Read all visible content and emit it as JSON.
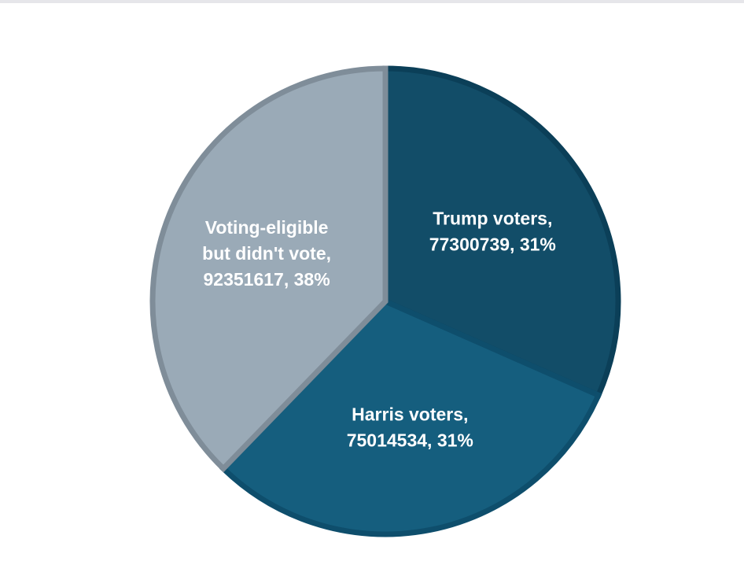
{
  "chart_data": {
    "type": "pie",
    "title": "",
    "start_angle_deg": 0,
    "direction": "clockwise",
    "slices": [
      {
        "category": "Trump voters",
        "value": 77300739,
        "percent_label": "31%",
        "label_lines": [
          "Trump voters,",
          "77300739, 31%"
        ],
        "color": "#124D68",
        "edge_color": "#0B3F58"
      },
      {
        "category": "Harris voters",
        "value": 75014534,
        "percent_label": "31%",
        "label_lines": [
          "Harris voters,",
          "75014534, 31%"
        ],
        "color": "#155E7E",
        "edge_color": "#0E4E6C"
      },
      {
        "category": "Voting-eligible but didn't vote",
        "value": 92351617,
        "percent_label": "38%",
        "label_lines": [
          "Voting-eligible",
          "but didn't vote,",
          "92351617, 38%"
        ],
        "color": "#9AAAB7",
        "edge_color": "#7F8D99"
      }
    ]
  }
}
